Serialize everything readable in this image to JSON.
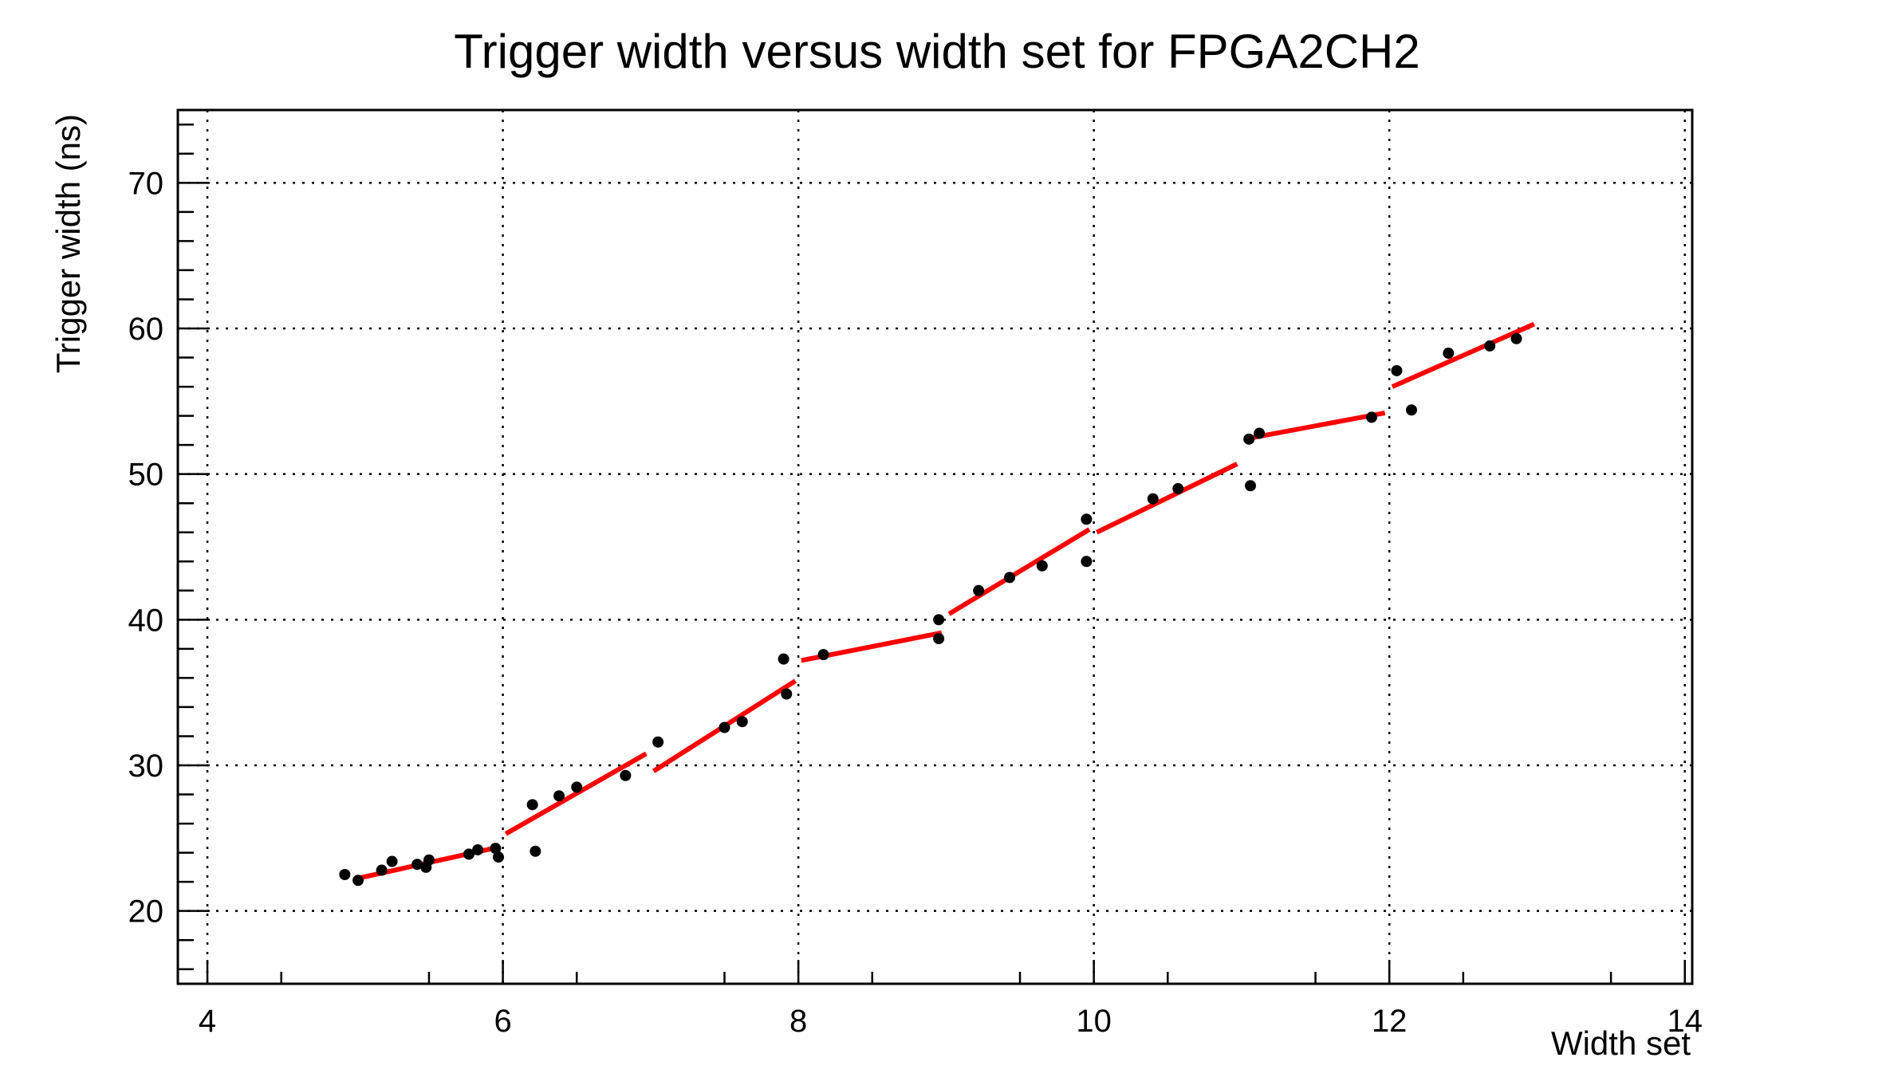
{
  "chart_data": {
    "type": "scatter",
    "title": "Trigger width versus width set for FPGA2CH2",
    "xlabel": "Width set",
    "ylabel": "Trigger width (ns)",
    "xlim": [
      3.8,
      14.05
    ],
    "ylim": [
      15,
      75
    ],
    "xticks": [
      "4",
      "6",
      "8",
      "10",
      "12",
      "14"
    ],
    "yticks": [
      "20",
      "30",
      "40",
      "50",
      "60",
      "70"
    ],
    "grid": true,
    "series": [
      {
        "marker_color": "#000000",
        "points": [
          {
            "x": 4.93,
            "y": 22.5
          },
          {
            "x": 5.02,
            "y": 22.1
          },
          {
            "x": 5.18,
            "y": 22.8
          },
          {
            "x": 5.25,
            "y": 23.4
          },
          {
            "x": 5.42,
            "y": 23.2
          },
          {
            "x": 5.48,
            "y": 23.0
          },
          {
            "x": 5.5,
            "y": 23.5
          },
          {
            "x": 5.77,
            "y": 23.9
          },
          {
            "x": 5.83,
            "y": 24.2
          },
          {
            "x": 5.95,
            "y": 24.3
          },
          {
            "x": 5.97,
            "y": 23.7
          },
          {
            "x": 6.2,
            "y": 27.3
          },
          {
            "x": 6.22,
            "y": 24.1
          },
          {
            "x": 6.38,
            "y": 27.9
          },
          {
            "x": 6.5,
            "y": 28.5
          },
          {
            "x": 6.83,
            "y": 29.3
          },
          {
            "x": 7.05,
            "y": 31.6
          },
          {
            "x": 7.5,
            "y": 32.6
          },
          {
            "x": 7.62,
            "y": 33.0
          },
          {
            "x": 7.9,
            "y": 37.3
          },
          {
            "x": 7.92,
            "y": 34.9
          },
          {
            "x": 8.17,
            "y": 37.6
          },
          {
            "x": 8.95,
            "y": 40.0
          },
          {
            "x": 8.95,
            "y": 38.7
          },
          {
            "x": 9.22,
            "y": 42.0
          },
          {
            "x": 9.43,
            "y": 42.9
          },
          {
            "x": 9.65,
            "y": 43.7
          },
          {
            "x": 9.95,
            "y": 46.9
          },
          {
            "x": 9.95,
            "y": 44.0
          },
          {
            "x": 10.4,
            "y": 48.3
          },
          {
            "x": 10.57,
            "y": 49.0
          },
          {
            "x": 11.05,
            "y": 52.4
          },
          {
            "x": 11.06,
            "y": 49.2
          },
          {
            "x": 11.12,
            "y": 52.8
          },
          {
            "x": 11.88,
            "y": 53.9
          },
          {
            "x": 12.05,
            "y": 57.1
          },
          {
            "x": 12.15,
            "y": 54.4
          },
          {
            "x": 12.4,
            "y": 58.3
          },
          {
            "x": 12.68,
            "y": 58.8
          },
          {
            "x": 12.86,
            "y": 59.3
          }
        ]
      }
    ],
    "fit_segments": {
      "color": "#ff0000",
      "segments": [
        {
          "x": [
            5.0,
            5.98
          ],
          "y": [
            22.2,
            24.4
          ]
        },
        {
          "x": [
            6.02,
            6.97
          ],
          "y": [
            25.3,
            30.8
          ]
        },
        {
          "x": [
            7.02,
            7.98
          ],
          "y": [
            29.6,
            35.8
          ]
        },
        {
          "x": [
            8.02,
            8.97
          ],
          "y": [
            37.2,
            39.1
          ]
        },
        {
          "x": [
            9.02,
            9.97
          ],
          "y": [
            40.4,
            46.2
          ]
        },
        {
          "x": [
            10.02,
            10.97
          ],
          "y": [
            46.0,
            50.7
          ]
        },
        {
          "x": [
            11.02,
            11.97
          ],
          "y": [
            52.4,
            54.2
          ]
        },
        {
          "x": [
            12.02,
            12.98
          ],
          "y": [
            56.0,
            60.3
          ]
        }
      ]
    }
  }
}
